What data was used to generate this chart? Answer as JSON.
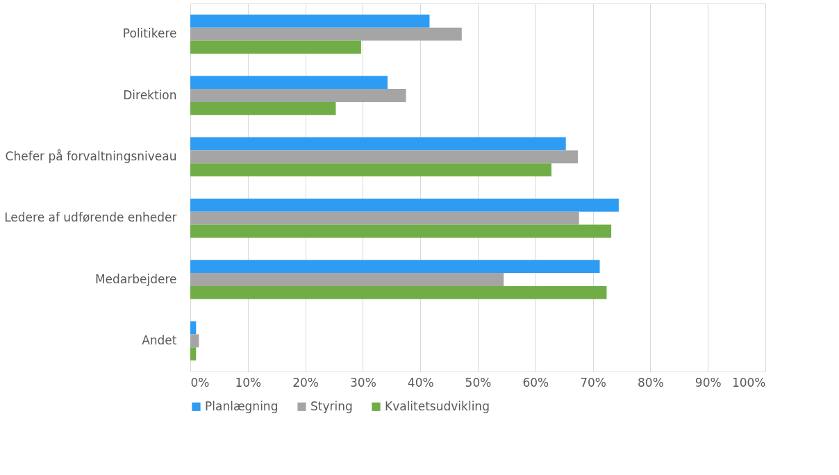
{
  "chart_data": {
    "type": "bar",
    "orientation": "horizontal",
    "categories": [
      "Politikere",
      "Direktion",
      "Chefer på forvaltningsniveau",
      "Ledere af udførende enheder",
      "Medarbejdere",
      "Andet"
    ],
    "series": [
      {
        "name": "Planlægning",
        "color": "#2e9cf2",
        "values": [
          41.6,
          34.3,
          65.3,
          74.5,
          71.2,
          1.0
        ]
      },
      {
        "name": "Styring",
        "color": "#a5a5a5",
        "values": [
          47.2,
          37.5,
          67.4,
          67.6,
          54.5,
          1.5
        ]
      },
      {
        "name": "Kvalitetsudvikling",
        "color": "#70ad47",
        "values": [
          29.7,
          25.3,
          62.8,
          73.2,
          72.4,
          1.0
        ]
      }
    ],
    "xlim": [
      0,
      100
    ],
    "xticks": [
      {
        "value": 0,
        "label": "0%"
      },
      {
        "value": 10,
        "label": "10%"
      },
      {
        "value": 20,
        "label": "20%"
      },
      {
        "value": 30,
        "label": "30%"
      },
      {
        "value": 40,
        "label": "40%"
      },
      {
        "value": 50,
        "label": "50%"
      },
      {
        "value": 60,
        "label": "60%"
      },
      {
        "value": 70,
        "label": "70%"
      },
      {
        "value": 80,
        "label": "80%"
      },
      {
        "value": 90,
        "label": "90%"
      },
      {
        "value": 100,
        "label": "100%"
      }
    ],
    "grid": "x",
    "legend": "bottom"
  }
}
